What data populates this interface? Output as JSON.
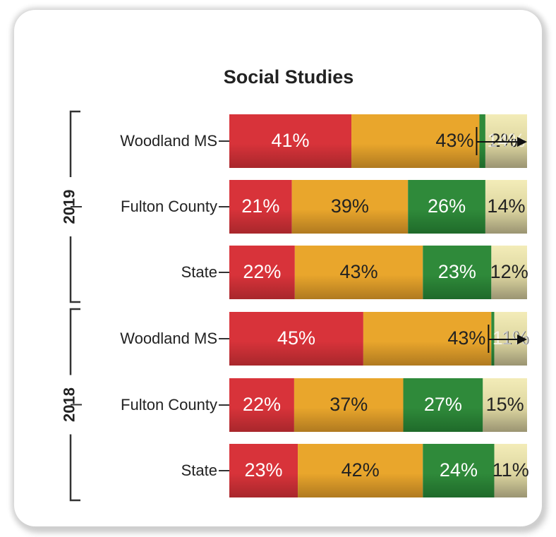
{
  "chart_data": {
    "type": "bar",
    "orientation": "horizontal-stacked-100",
    "title": "Social Studies",
    "groups": [
      {
        "label": "2019",
        "rows": [
          {
            "label": "Woodland MS",
            "values": [
              41,
              43,
              2,
              14
            ]
          },
          {
            "label": "Fulton County",
            "values": [
              21,
              39,
              26,
              14
            ]
          },
          {
            "label": "State",
            "values": [
              22,
              43,
              23,
              12
            ]
          }
        ]
      },
      {
        "label": "2018",
        "rows": [
          {
            "label": "Woodland MS",
            "values": [
              45,
              43,
              1,
              11
            ]
          },
          {
            "label": "Fulton County",
            "values": [
              22,
              37,
              27,
              15
            ]
          },
          {
            "label": "State",
            "values": [
              23,
              42,
              24,
              11
            ]
          }
        ]
      }
    ],
    "segment_colors": [
      "#d8333a",
      "#e9a62c",
      "#2f8a3a",
      "#ddd6a0"
    ],
    "segment_label_colors": [
      "#ffffff",
      "#222222",
      "#ffffff",
      "#222222"
    ],
    "grid": false,
    "legend": "none"
  }
}
